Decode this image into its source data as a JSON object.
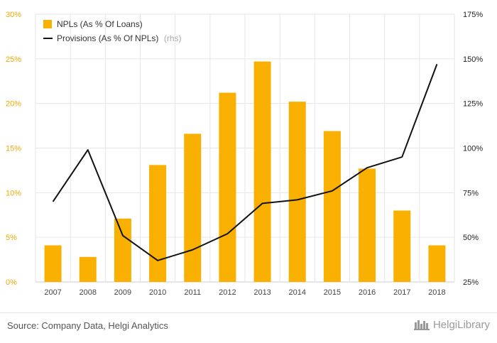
{
  "chart_data": {
    "type": "bar+line",
    "categories": [
      "2007",
      "2008",
      "2009",
      "2010",
      "2011",
      "2012",
      "2013",
      "2014",
      "2015",
      "2016",
      "2017",
      "2018"
    ],
    "series": [
      {
        "name": "NPLs (As % Of Loans)",
        "type": "bar",
        "axis": "left",
        "color": "#f9b000",
        "values": [
          4.1,
          2.8,
          7.1,
          13.1,
          16.6,
          21.2,
          24.7,
          20.2,
          16.9,
          12.7,
          8.0,
          4.1
        ]
      },
      {
        "name": "Provisions (As % Of NPLs)",
        "type": "line",
        "axis": "right",
        "color": "#111111",
        "values": [
          70,
          99,
          51,
          37,
          43,
          52,
          69,
          71,
          76,
          89,
          95,
          147
        ]
      }
    ],
    "legend": {
      "position": "top-left",
      "items": [
        {
          "label": "NPLs (As % Of Loans)",
          "note": ""
        },
        {
          "label": "Provisions (As % Of NPLs)",
          "note": "(rhs)"
        }
      ]
    },
    "ylim_left": [
      0,
      30
    ],
    "yticks_left": [
      0,
      5,
      10,
      15,
      20,
      25,
      30
    ],
    "yticklabels_left": [
      "0%",
      "5%",
      "10%",
      "15%",
      "20%",
      "25%",
      "30%"
    ],
    "ylim_right": [
      25,
      175
    ],
    "yticks_right": [
      25,
      50,
      75,
      100,
      125,
      150,
      175
    ],
    "yticklabels_right": [
      "25%",
      "50%",
      "75%",
      "100%",
      "125%",
      "150%",
      "175%"
    ],
    "grid": true
  },
  "footer": {
    "source": "Source: Company Data, Helgi Analytics",
    "brand": "HelgiLibrary"
  },
  "colors": {
    "bar": "#f9b000",
    "line": "#111111",
    "grid": "#e6e6e6",
    "left_tick": "#f2a900"
  }
}
